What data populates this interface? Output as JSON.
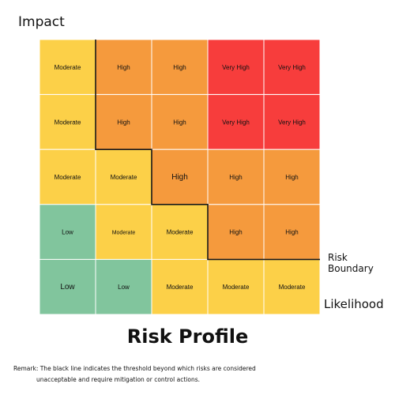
{
  "axis": {
    "y_label": "Impact",
    "x_label": "Likelihood"
  },
  "boundary_label": "Risk Boundary",
  "title": "Risk Profile",
  "remark": {
    "line1": "Remark: The black line indicates the threshold beyond which risks are considered",
    "line2": "unacceptable and require mitigation or control actions."
  },
  "colors": {
    "Low": "#81c59d",
    "Moderate": "#fcd048",
    "High": "#f59a3d",
    "Very High": "#f73d3c",
    "grid_line": "#ffffff",
    "boundary_line": "#1a1a1a"
  },
  "chart_data": {
    "type": "heatmap",
    "title": "Risk Profile",
    "xlabel": "Likelihood",
    "ylabel": "Impact",
    "rows": [
      [
        "Moderate",
        "High",
        "High",
        "Very High",
        "Very High"
      ],
      [
        "Moderate",
        "High",
        "High",
        "Very High",
        "Very High"
      ],
      [
        "Moderate",
        "Moderate",
        "High",
        "High",
        "High"
      ],
      [
        "Low",
        "Moderate",
        "Moderate",
        "High",
        "High"
      ],
      [
        "Low",
        "Low",
        "Moderate",
        "Moderate",
        "Moderate"
      ]
    ],
    "risk_boundary_steps": [
      1,
      1,
      2,
      3,
      5
    ]
  }
}
